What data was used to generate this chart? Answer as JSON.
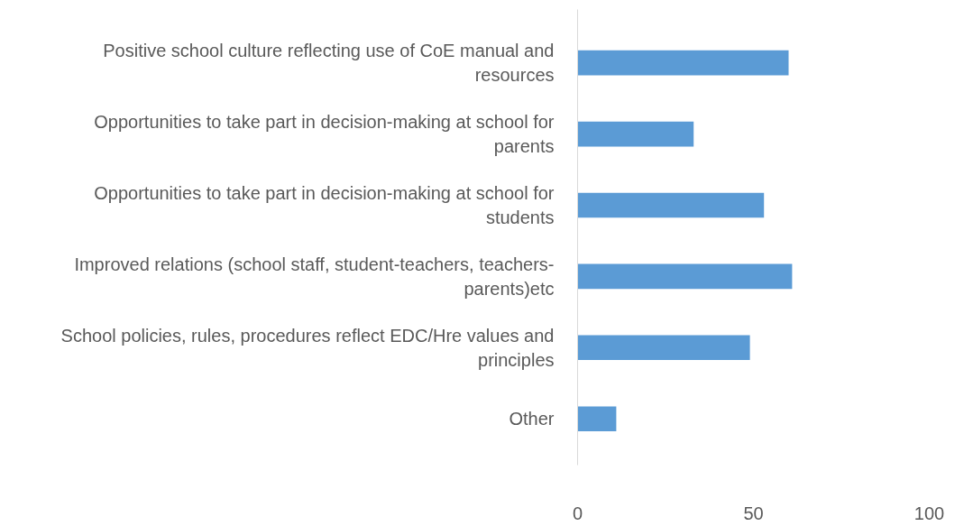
{
  "chart_data": {
    "type": "bar",
    "orientation": "horizontal",
    "categories": [
      "Positive school culture reflecting use of CoE manual and resources",
      "Opportunities to take part in decision-making at school for parents",
      "Opportunities to take part in decision-making at school for students",
      "Improved relations (school staff, student-teachers, teachers-parents)etc",
      "School policies, rules, procedures reflect EDC/Hre values and principles",
      "Other"
    ],
    "values": [
      60,
      33,
      53,
      61,
      49,
      11
    ],
    "color": "#5b9bd5",
    "xlim": [
      0,
      100
    ],
    "xticks": [
      0,
      50,
      100
    ],
    "grid": false
  }
}
